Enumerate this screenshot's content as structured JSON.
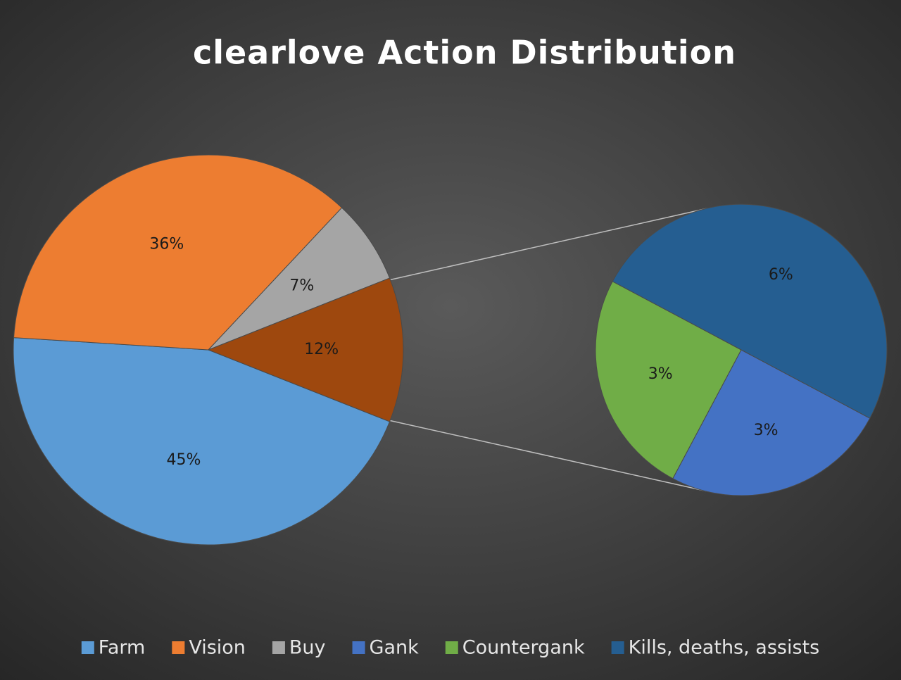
{
  "chart_data": [
    {
      "type": "pie",
      "title": "clearlove Action Distribution",
      "categories": [
        "Farm",
        "Vision",
        "Buy",
        null
      ],
      "values": [
        45,
        36,
        7,
        12
      ],
      "value_labels": [
        "45%",
        "36%",
        "7%",
        "12%"
      ],
      "colors": [
        "#5b9bd5",
        "#ed7d31",
        "#a5a5a5",
        "#9e480e"
      ]
    },
    {
      "type": "pie",
      "categories": [
        "Gank",
        "Countergank",
        "Kills, deaths, assists"
      ],
      "values": [
        3,
        3,
        6
      ],
      "value_labels": [
        "3%",
        "3%",
        "6%"
      ],
      "colors": [
        "#4472c4",
        "#70ad47",
        "#255e91"
      ]
    }
  ]
}
